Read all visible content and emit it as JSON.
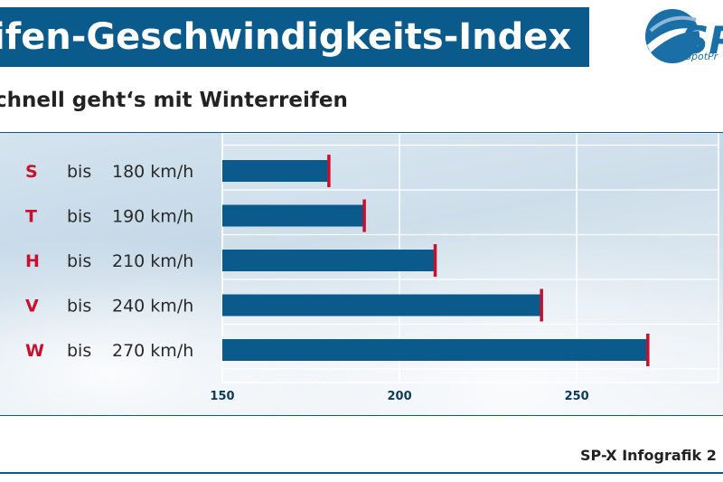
{
  "header": {
    "title": "ifen-Geschwindigkeits-Index",
    "subtitle": "chnell geht‘s mit Winterreifen",
    "logo_text": "SP",
    "logo_sub": "SpotPr"
  },
  "footer": {
    "credit": "SP-X Infografik 2"
  },
  "colors": {
    "bar": "#0b5a8c",
    "marker": "#c8102e",
    "grid": "#ffffff"
  },
  "chart_data": {
    "type": "bar",
    "orientation": "horizontal",
    "title": "ifen-Geschwindigkeits-Index",
    "subtitle": "chnell geht‘s mit Winterreifen",
    "categories": [
      "S",
      "T",
      "H",
      "V",
      "W"
    ],
    "row_labels": [
      {
        "letter": "S",
        "word": "bis",
        "speed": "180 km/h"
      },
      {
        "letter": "T",
        "word": "bis",
        "speed": "190 km/h"
      },
      {
        "letter": "H",
        "word": "bis",
        "speed": "210 km/h"
      },
      {
        "letter": "V",
        "word": "bis",
        "speed": "240 km/h"
      },
      {
        "letter": "W",
        "word": "bis",
        "speed": "270 km/h"
      }
    ],
    "values": [
      180,
      190,
      210,
      240,
      270
    ],
    "xlim": [
      150,
      290
    ],
    "xticks": [
      150,
      200,
      250
    ],
    "xlabel": "",
    "ylabel": "",
    "grid": true,
    "legend": "none"
  }
}
